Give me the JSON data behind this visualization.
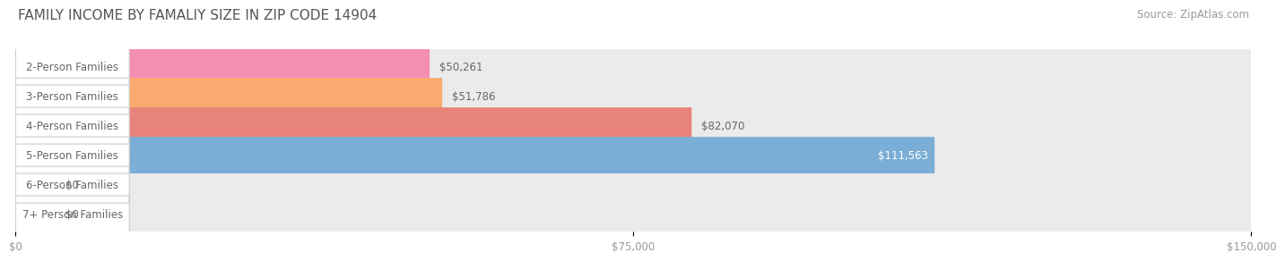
{
  "title": "FAMILY INCOME BY FAMALIY SIZE IN ZIP CODE 14904",
  "source": "Source: ZipAtlas.com",
  "categories": [
    "2-Person Families",
    "3-Person Families",
    "4-Person Families",
    "5-Person Families",
    "6-Person Families",
    "7+ Person Families"
  ],
  "values": [
    50261,
    51786,
    82070,
    111563,
    0,
    0
  ],
  "bar_colors": [
    "#f48fb1",
    "#f9aa6e",
    "#e8837a",
    "#7aaed6",
    "#c3a8d1",
    "#7ececa"
  ],
  "bar_bg_color": "#ebebeb",
  "label_bg_color": "#ffffff",
  "label_text_color": "#666666",
  "value_label_colors": [
    "#666666",
    "#666666",
    "#666666",
    "#ffffff",
    "#666666",
    "#666666"
  ],
  "xlim": [
    0,
    150000
  ],
  "xticks": [
    0,
    75000,
    150000
  ],
  "xtick_labels": [
    "$0",
    "$75,000",
    "$150,000"
  ],
  "title_fontsize": 11,
  "source_fontsize": 8.5,
  "label_fontsize": 8.5,
  "value_fontsize": 8.5,
  "bar_height": 0.62,
  "background_color": "#ffffff",
  "title_color": "#555555",
  "nub_values": [
    4500,
    4500
  ]
}
